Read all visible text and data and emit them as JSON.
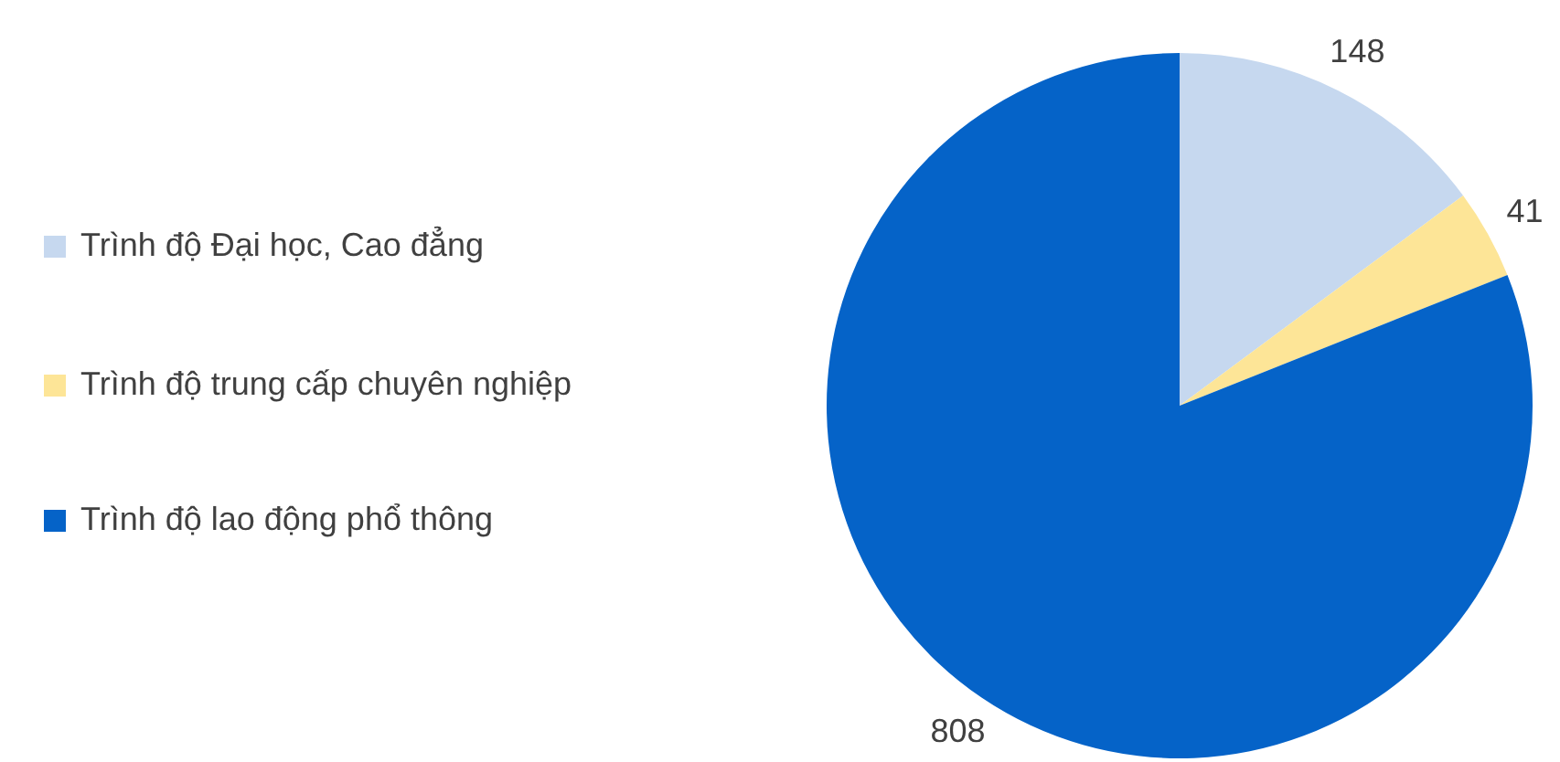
{
  "chart_data": {
    "type": "pie",
    "categories": [
      "Trình độ Đại học, Cao đẳng",
      "Trình độ trung cấp chuyên nghiệp",
      "Trình độ lao động phổ thông"
    ],
    "values": [
      148,
      41,
      808
    ],
    "colors": [
      "#c6d8ef",
      "#fde597",
      "#0563c8"
    ],
    "data_labels": true,
    "legend": "left"
  }
}
